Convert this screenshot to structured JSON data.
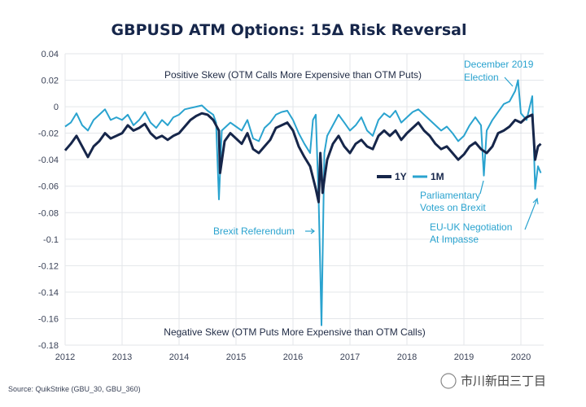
{
  "chart_data": {
    "type": "line",
    "title": "GBPUSD ATM Options: 15Δ Risk Reversal",
    "xlabel": "",
    "ylabel": "",
    "x_ticks": [
      "2012",
      "2013",
      "2014",
      "2015",
      "2016",
      "2017",
      "2018",
      "2019",
      "2020"
    ],
    "xlim": [
      2012.0,
      2020.4
    ],
    "y_ticks": [
      "0.04",
      "0.02",
      "0",
      "-0.02",
      "-0.04",
      "-0.06",
      "-0.08",
      "-0.1",
      "-0.12",
      "-0.14",
      "-0.16",
      "-0.18"
    ],
    "ylim": [
      -0.18,
      0.04
    ],
    "grid": true,
    "legend_position": "right",
    "series": [
      {
        "name": "1Y",
        "color": "#16264a",
        "points": [
          [
            2012.0,
            -0.033
          ],
          [
            2012.1,
            -0.028
          ],
          [
            2012.2,
            -0.022
          ],
          [
            2012.3,
            -0.03
          ],
          [
            2012.4,
            -0.038
          ],
          [
            2012.5,
            -0.03
          ],
          [
            2012.6,
            -0.026
          ],
          [
            2012.7,
            -0.02
          ],
          [
            2012.8,
            -0.024
          ],
          [
            2012.9,
            -0.022
          ],
          [
            2013.0,
            -0.02
          ],
          [
            2013.1,
            -0.014
          ],
          [
            2013.2,
            -0.018
          ],
          [
            2013.3,
            -0.016
          ],
          [
            2013.4,
            -0.013
          ],
          [
            2013.5,
            -0.02
          ],
          [
            2013.6,
            -0.024
          ],
          [
            2013.7,
            -0.022
          ],
          [
            2013.8,
            -0.025
          ],
          [
            2013.9,
            -0.022
          ],
          [
            2014.0,
            -0.02
          ],
          [
            2014.1,
            -0.015
          ],
          [
            2014.2,
            -0.01
          ],
          [
            2014.3,
            -0.007
          ],
          [
            2014.4,
            -0.005
          ],
          [
            2014.5,
            -0.006
          ],
          [
            2014.6,
            -0.01
          ],
          [
            2014.7,
            -0.018
          ],
          [
            2014.72,
            -0.05
          ],
          [
            2014.8,
            -0.026
          ],
          [
            2014.9,
            -0.02
          ],
          [
            2015.0,
            -0.024
          ],
          [
            2015.1,
            -0.028
          ],
          [
            2015.2,
            -0.02
          ],
          [
            2015.3,
            -0.032
          ],
          [
            2015.4,
            -0.035
          ],
          [
            2015.5,
            -0.03
          ],
          [
            2015.6,
            -0.025
          ],
          [
            2015.7,
            -0.016
          ],
          [
            2015.8,
            -0.014
          ],
          [
            2015.9,
            -0.012
          ],
          [
            2016.0,
            -0.018
          ],
          [
            2016.1,
            -0.03
          ],
          [
            2016.2,
            -0.038
          ],
          [
            2016.3,
            -0.045
          ],
          [
            2016.4,
            -0.062
          ],
          [
            2016.45,
            -0.072
          ],
          [
            2016.48,
            -0.035
          ],
          [
            2016.52,
            -0.065
          ],
          [
            2016.56,
            -0.052
          ],
          [
            2016.6,
            -0.04
          ],
          [
            2016.7,
            -0.028
          ],
          [
            2016.8,
            -0.022
          ],
          [
            2016.9,
            -0.03
          ],
          [
            2017.0,
            -0.035
          ],
          [
            2017.1,
            -0.028
          ],
          [
            2017.2,
            -0.025
          ],
          [
            2017.3,
            -0.03
          ],
          [
            2017.4,
            -0.032
          ],
          [
            2017.5,
            -0.022
          ],
          [
            2017.6,
            -0.018
          ],
          [
            2017.7,
            -0.022
          ],
          [
            2017.8,
            -0.018
          ],
          [
            2017.9,
            -0.025
          ],
          [
            2018.0,
            -0.02
          ],
          [
            2018.1,
            -0.016
          ],
          [
            2018.2,
            -0.012
          ],
          [
            2018.3,
            -0.018
          ],
          [
            2018.4,
            -0.022
          ],
          [
            2018.5,
            -0.028
          ],
          [
            2018.6,
            -0.032
          ],
          [
            2018.7,
            -0.03
          ],
          [
            2018.8,
            -0.035
          ],
          [
            2018.9,
            -0.04
          ],
          [
            2019.0,
            -0.036
          ],
          [
            2019.1,
            -0.03
          ],
          [
            2019.2,
            -0.027
          ],
          [
            2019.3,
            -0.032
          ],
          [
            2019.4,
            -0.035
          ],
          [
            2019.5,
            -0.03
          ],
          [
            2019.6,
            -0.02
          ],
          [
            2019.7,
            -0.018
          ],
          [
            2019.8,
            -0.015
          ],
          [
            2019.9,
            -0.01
          ],
          [
            2020.0,
            -0.012
          ],
          [
            2020.1,
            -0.008
          ],
          [
            2020.2,
            -0.006
          ],
          [
            2020.25,
            -0.04
          ],
          [
            2020.3,
            -0.03
          ],
          [
            2020.35,
            -0.028
          ]
        ]
      },
      {
        "name": "1M",
        "color": "#2aa3cf",
        "points": [
          [
            2012.0,
            -0.015
          ],
          [
            2012.1,
            -0.012
          ],
          [
            2012.2,
            -0.005
          ],
          [
            2012.3,
            -0.014
          ],
          [
            2012.4,
            -0.018
          ],
          [
            2012.5,
            -0.01
          ],
          [
            2012.6,
            -0.006
          ],
          [
            2012.7,
            -0.002
          ],
          [
            2012.8,
            -0.01
          ],
          [
            2012.9,
            -0.008
          ],
          [
            2013.0,
            -0.01
          ],
          [
            2013.1,
            -0.006
          ],
          [
            2013.2,
            -0.014
          ],
          [
            2013.3,
            -0.01
          ],
          [
            2013.4,
            -0.004
          ],
          [
            2013.5,
            -0.012
          ],
          [
            2013.6,
            -0.016
          ],
          [
            2013.7,
            -0.01
          ],
          [
            2013.8,
            -0.014
          ],
          [
            2013.9,
            -0.008
          ],
          [
            2014.0,
            -0.006
          ],
          [
            2014.1,
            -0.002
          ],
          [
            2014.2,
            -0.001
          ],
          [
            2014.3,
            0.0
          ],
          [
            2014.4,
            0.001
          ],
          [
            2014.5,
            -0.003
          ],
          [
            2014.6,
            -0.006
          ],
          [
            2014.65,
            -0.012
          ],
          [
            2014.7,
            -0.07
          ],
          [
            2014.75,
            -0.018
          ],
          [
            2014.9,
            -0.012
          ],
          [
            2015.0,
            -0.015
          ],
          [
            2015.1,
            -0.018
          ],
          [
            2015.2,
            -0.01
          ],
          [
            2015.3,
            -0.024
          ],
          [
            2015.4,
            -0.026
          ],
          [
            2015.5,
            -0.016
          ],
          [
            2015.6,
            -0.012
          ],
          [
            2015.7,
            -0.006
          ],
          [
            2015.8,
            -0.004
          ],
          [
            2015.9,
            -0.003
          ],
          [
            2016.0,
            -0.01
          ],
          [
            2016.1,
            -0.02
          ],
          [
            2016.2,
            -0.028
          ],
          [
            2016.3,
            -0.035
          ],
          [
            2016.35,
            -0.01
          ],
          [
            2016.4,
            -0.006
          ],
          [
            2016.45,
            -0.07
          ],
          [
            2016.48,
            -0.125
          ],
          [
            2016.5,
            -0.165
          ],
          [
            2016.55,
            -0.035
          ],
          [
            2016.6,
            -0.022
          ],
          [
            2016.7,
            -0.014
          ],
          [
            2016.8,
            -0.006
          ],
          [
            2016.9,
            -0.012
          ],
          [
            2017.0,
            -0.018
          ],
          [
            2017.1,
            -0.014
          ],
          [
            2017.2,
            -0.008
          ],
          [
            2017.3,
            -0.018
          ],
          [
            2017.4,
            -0.022
          ],
          [
            2017.5,
            -0.01
          ],
          [
            2017.6,
            -0.005
          ],
          [
            2017.7,
            -0.008
          ],
          [
            2017.8,
            -0.003
          ],
          [
            2017.9,
            -0.012
          ],
          [
            2018.0,
            -0.008
          ],
          [
            2018.1,
            -0.004
          ],
          [
            2018.2,
            -0.002
          ],
          [
            2018.3,
            -0.006
          ],
          [
            2018.4,
            -0.01
          ],
          [
            2018.5,
            -0.014
          ],
          [
            2018.6,
            -0.018
          ],
          [
            2018.7,
            -0.015
          ],
          [
            2018.8,
            -0.02
          ],
          [
            2018.9,
            -0.026
          ],
          [
            2019.0,
            -0.022
          ],
          [
            2019.1,
            -0.014
          ],
          [
            2019.2,
            -0.008
          ],
          [
            2019.3,
            -0.014
          ],
          [
            2019.35,
            -0.052
          ],
          [
            2019.4,
            -0.018
          ],
          [
            2019.5,
            -0.01
          ],
          [
            2019.6,
            -0.004
          ],
          [
            2019.7,
            0.002
          ],
          [
            2019.8,
            0.004
          ],
          [
            2019.9,
            0.012
          ],
          [
            2019.95,
            0.02
          ],
          [
            2020.0,
            -0.005
          ],
          [
            2020.1,
            -0.01
          ],
          [
            2020.2,
            0.008
          ],
          [
            2020.25,
            -0.062
          ],
          [
            2020.3,
            -0.045
          ],
          [
            2020.35,
            -0.05
          ]
        ]
      }
    ],
    "annotations": [
      {
        "text": "Positive Skew (OTM Calls More Expensive than OTM Puts)",
        "style": "note"
      },
      {
        "text": "Negative Skew (OTM Puts More Expensive than OTM Calls)",
        "style": "note"
      },
      {
        "text": "Brexit Referendum",
        "style": "ann"
      },
      {
        "text": "Parliamentary",
        "style": "ann"
      },
      {
        "text": "Votes on Brexit",
        "style": "ann"
      },
      {
        "text": "December 2019",
        "style": "ann"
      },
      {
        "text": "Election",
        "style": "ann"
      },
      {
        "text": "EU-UK Negotiation",
        "style": "ann"
      },
      {
        "text": "At Impasse",
        "style": "ann"
      }
    ]
  },
  "source": "Source: QuikStrike (GBU_30, GBU_360)",
  "watermark": "市川新田三丁目"
}
